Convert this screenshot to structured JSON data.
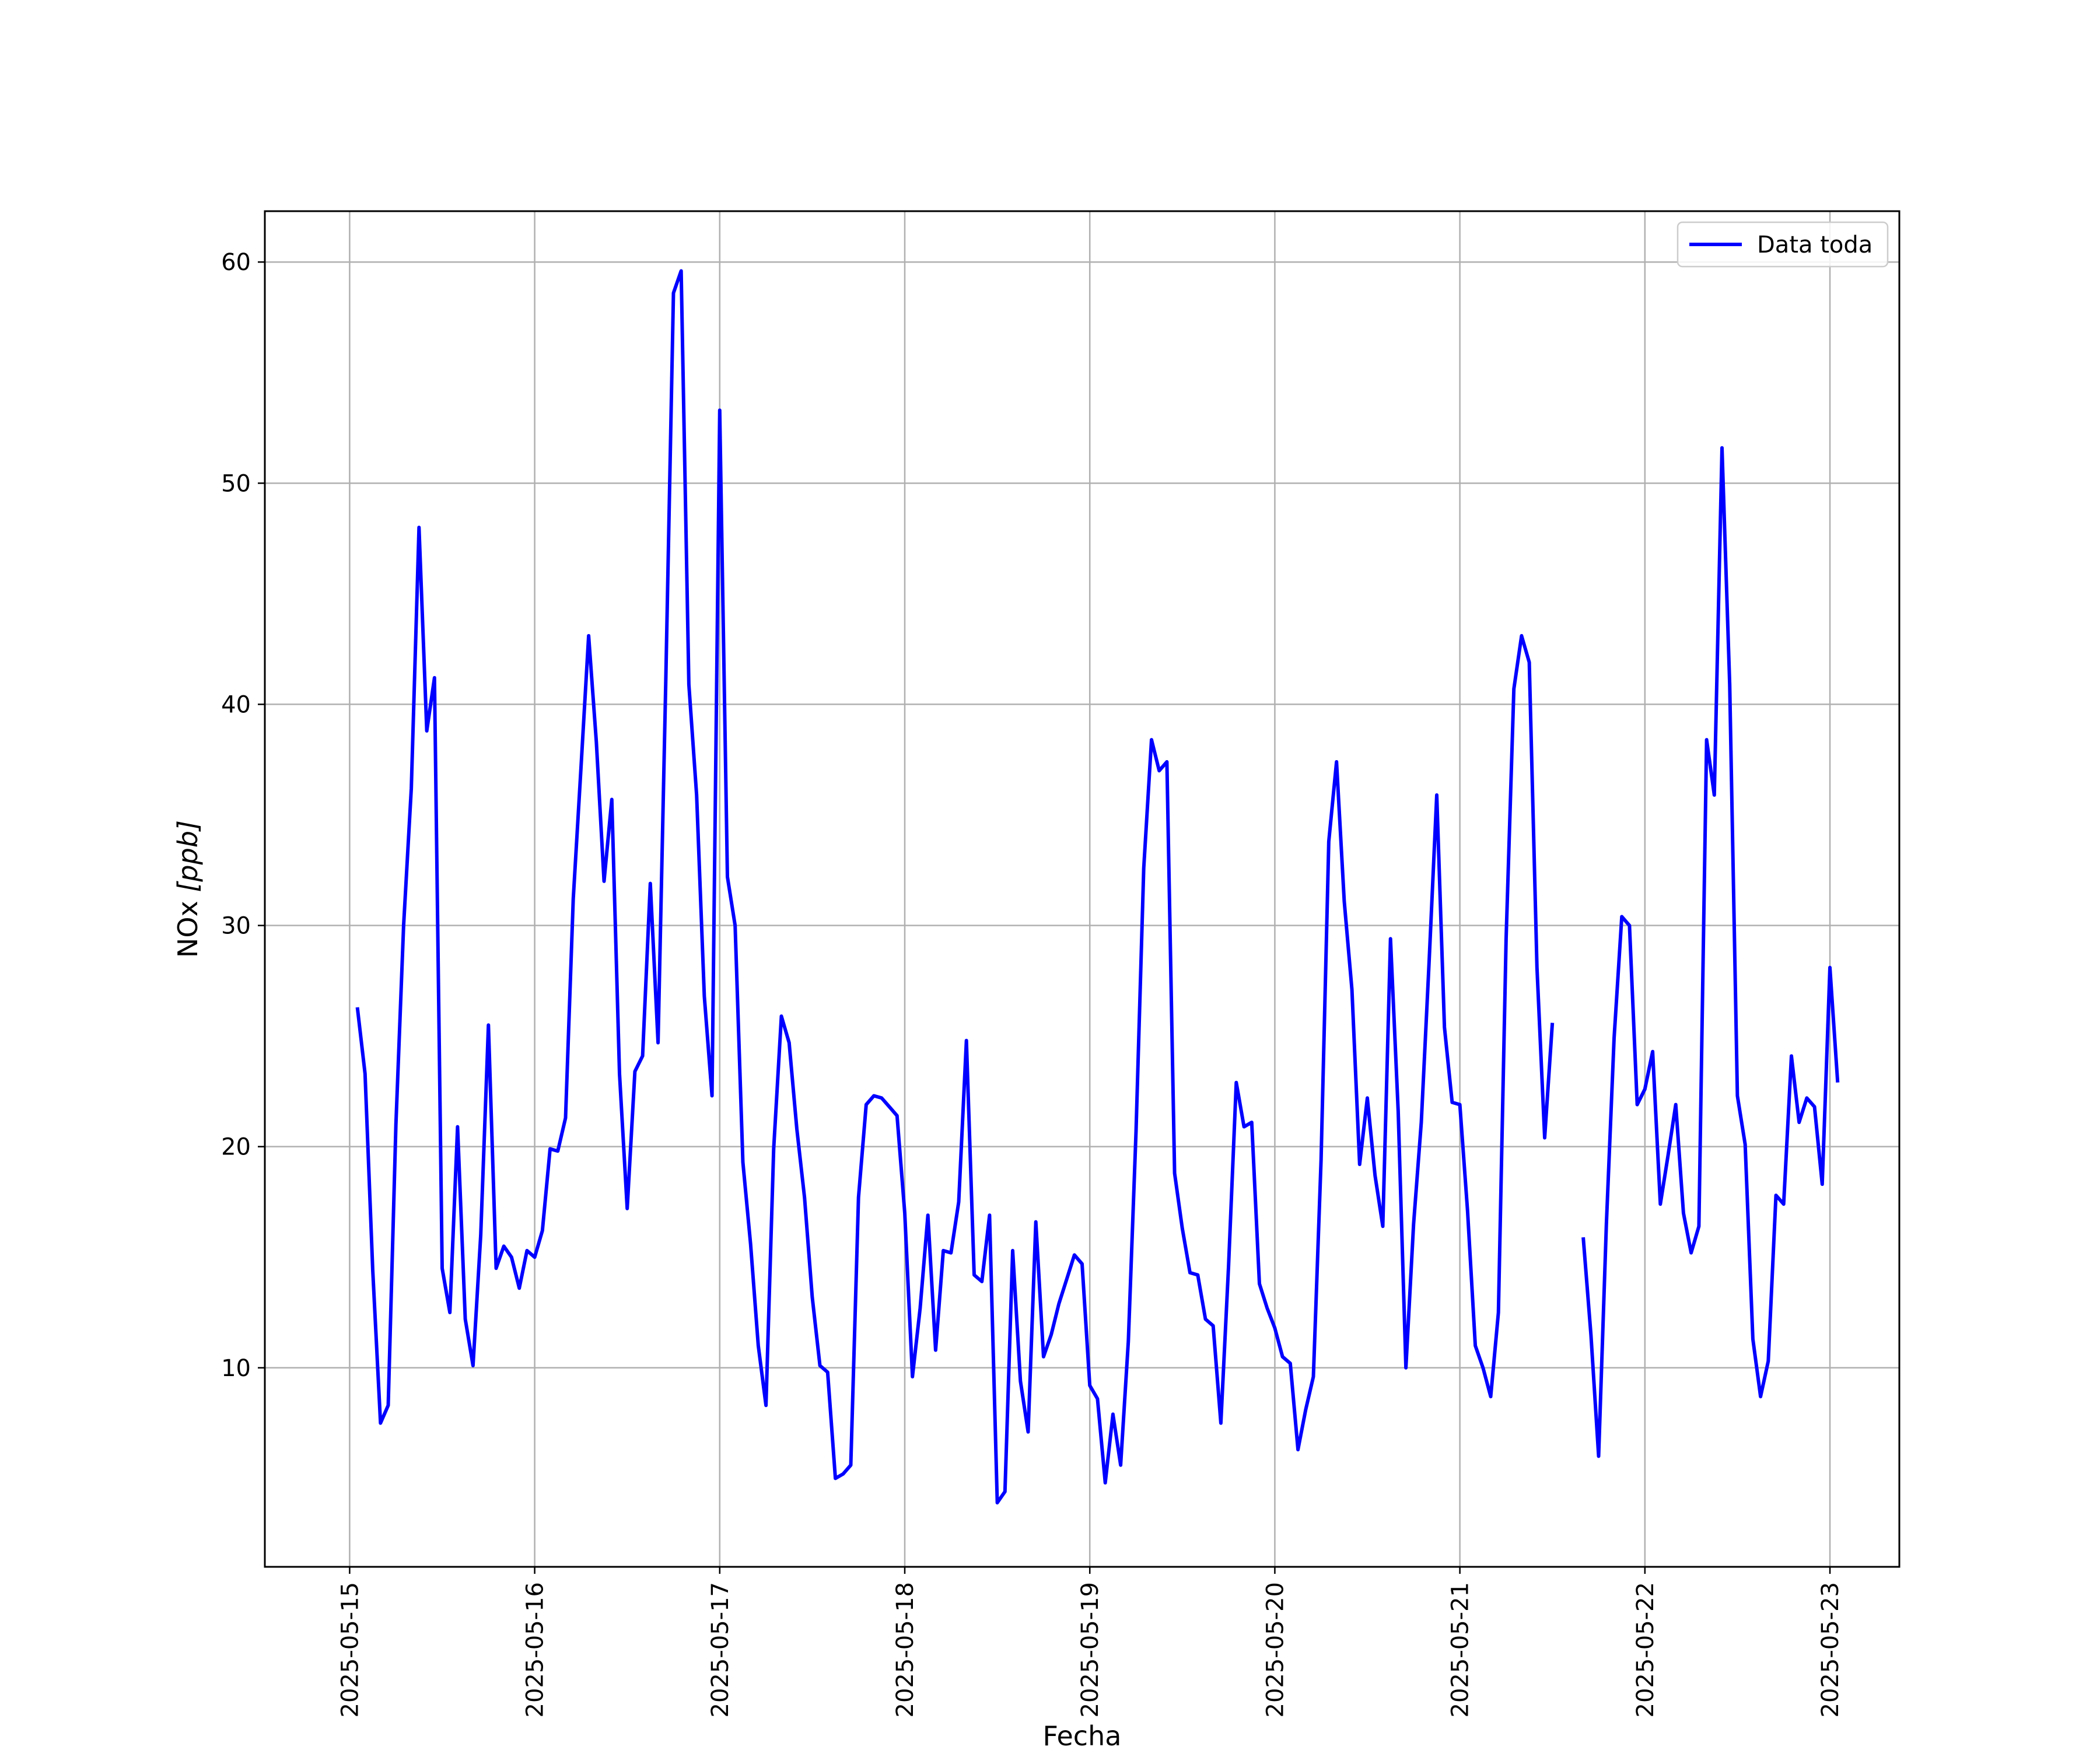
{
  "chart_data": {
    "type": "line",
    "xlabel": "Fecha",
    "ylabel_main": "NOx ",
    "ylabel_unit": "[ppb]",
    "x_type": "datetime",
    "xlim": [
      "2025-05-14 13:00",
      "2025-05-23 09:00"
    ],
    "ylim": [
      1,
      62.3
    ],
    "x_ticks": [
      "2025-05-15",
      "2025-05-16",
      "2025-05-17",
      "2025-05-18",
      "2025-05-19",
      "2025-05-20",
      "2025-05-21",
      "2025-05-22",
      "2025-05-23"
    ],
    "y_ticks": [
      10,
      20,
      30,
      40,
      50,
      60
    ],
    "grid": true,
    "legend_position": "top-right",
    "colors": {
      "line": "#0000ff",
      "grid": "#b0b0b0",
      "axes": "#000000"
    },
    "series": [
      {
        "name": "Data toda",
        "start": "2025-05-15 01:00",
        "step_hours": 1,
        "values": [
          26.3,
          23.3,
          14.4,
          7.5,
          8.3,
          21.0,
          30.0,
          36.2,
          48.0,
          38.8,
          41.2,
          14.5,
          12.5,
          20.9,
          12.2,
          10.1,
          16.0,
          25.5,
          14.5,
          15.5,
          15.0,
          13.6,
          15.3,
          15.0,
          16.2,
          19.9,
          19.8,
          21.3,
          31.2,
          37.1,
          43.1,
          38.3,
          32.0,
          35.7,
          23.3,
          17.2,
          23.4,
          24.1,
          31.9,
          24.7,
          41.0,
          58.6,
          59.6,
          40.9,
          35.9,
          26.8,
          22.3,
          53.3,
          32.2,
          30.0,
          19.3,
          15.6,
          11.0,
          8.3,
          19.9,
          25.9,
          24.7,
          20.8,
          17.7,
          13.2,
          10.1,
          9.8,
          5.0,
          5.2,
          5.6,
          17.7,
          21.9,
          22.3,
          22.2,
          21.8,
          21.4,
          17.0,
          9.6,
          12.7,
          16.9,
          10.8,
          15.3,
          15.2,
          17.5,
          24.8,
          14.2,
          13.9,
          16.9,
          3.9,
          4.4,
          15.3,
          9.4,
          7.1,
          16.6,
          10.5,
          11.5,
          12.9,
          14.0,
          15.1,
          14.7,
          9.2,
          8.6,
          4.8,
          7.9,
          5.6,
          11.2,
          20.7,
          32.6,
          38.4,
          37.0,
          37.4,
          18.8,
          16.3,
          14.3,
          14.2,
          12.2,
          11.9,
          7.5,
          14.6,
          22.9,
          20.9,
          21.1,
          13.8,
          12.7,
          11.8,
          10.5,
          10.2,
          6.3,
          8.1,
          9.6,
          19.4,
          33.8,
          37.4,
          31.1,
          27.1,
          19.2,
          22.2,
          18.7,
          16.4,
          29.4,
          21.6,
          10.0,
          16.5,
          21.1,
          28.3,
          35.9,
          25.4,
          22.0,
          21.9,
          17.1,
          11.0,
          10.0,
          8.7,
          12.5,
          29.4,
          40.7,
          43.1,
          41.9,
          28.1,
          20.4,
          25.6,
          null,
          null,
          null,
          15.9,
          11.5,
          6.0,
          16.5,
          24.9,
          30.4,
          30.0,
          21.9,
          22.6,
          24.3,
          17.4,
          19.6,
          21.9,
          17.0,
          15.2,
          16.4,
          38.4,
          35.9,
          51.6,
          40.9,
          22.3,
          20.1,
          11.3,
          8.7,
          10.3,
          17.8,
          17.4,
          24.1,
          21.1,
          22.2,
          21.8,
          18.3,
          28.1,
          22.9
        ]
      }
    ]
  }
}
